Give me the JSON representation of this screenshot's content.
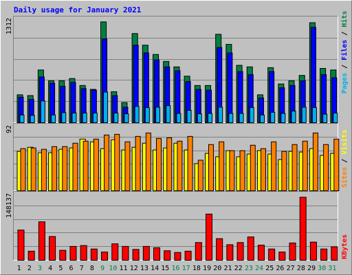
{
  "chart_data": {
    "type": "bar",
    "title": "Daily usage for January 2021",
    "categories": [
      "1",
      "2",
      "3",
      "4",
      "5",
      "6",
      "7",
      "8",
      "9",
      "10",
      "11",
      "12",
      "13",
      "14",
      "15",
      "16",
      "17",
      "18",
      "19",
      "20",
      "21",
      "22",
      "23",
      "24",
      "25",
      "26",
      "27",
      "28",
      "29",
      "30",
      "31"
    ],
    "weekend_days": [
      "3",
      "9",
      "10",
      "16",
      "17",
      "23",
      "24",
      "30",
      "31"
    ],
    "panels": [
      {
        "id": "requests",
        "ylim": [
          0,
          1312
        ],
        "max_label": "1312",
        "right_label": [
          "Pages",
          "Files",
          "Hits"
        ],
        "series": [
          {
            "name": "Hits",
            "color": "#008040",
            "values": [
              360,
              350,
              680,
              540,
              540,
              570,
              480,
              430,
              1300,
              400,
              260,
              1150,
              1000,
              880,
              790,
              720,
              600,
              480,
              480,
              1140,
              1010,
              740,
              720,
              360,
              710,
              500,
              540,
              610,
              1290,
              700,
              680
            ]
          },
          {
            "name": "Files",
            "color": "#0000ff",
            "values": [
              330,
              300,
              590,
              510,
              470,
              520,
              440,
              420,
              1080,
              350,
              200,
              1000,
              900,
              810,
              720,
              670,
              530,
              430,
              420,
              970,
              900,
              660,
              620,
              320,
              660,
              450,
              480,
              540,
              1230,
              620,
              580
            ]
          },
          {
            "name": "Pages",
            "color": "#00b0f0",
            "values": [
              100,
              95,
              280,
              100,
              130,
              125,
              125,
              125,
              395,
              125,
              115,
              210,
              195,
              200,
              220,
              120,
              160,
              115,
              120,
              200,
              120,
              120,
              195,
              100,
              135,
              120,
              150,
              200,
              195,
              110,
              125
            ]
          }
        ]
      },
      {
        "id": "visitors",
        "ylim": [
          0,
          92
        ],
        "max_label": "92",
        "right_label": [
          "Sites",
          "Visits"
        ],
        "series": [
          {
            "name": "Visits",
            "color": "#ffff00",
            "values": [
              58,
              64,
              56,
              56,
              61,
              63,
              76,
              72,
              62,
              75,
              60,
              64,
              70,
              60,
              63,
              70,
              60,
              40,
              55,
              50,
              59,
              50,
              54,
              59,
              54,
              46,
              58,
              57,
              62,
              52,
              55
            ]
          },
          {
            "name": "Sites",
            "color": "#ff8000",
            "values": [
              62,
              63,
              61,
              65,
              65,
              70,
              73,
              76,
              82,
              83,
              72,
              80,
              85,
              77,
              78,
              73,
              80,
              45,
              68,
              72,
              59,
              59,
              67,
              62,
              72,
              58,
              68,
              73,
              85,
              68,
              76
            ]
          }
        ]
      },
      {
        "id": "kbytes",
        "ylim": [
          0,
          148137
        ],
        "max_label": "148137",
        "right_label": [
          "KBytes"
        ],
        "series": [
          {
            "name": "KBytes",
            "color": "#ff0000",
            "values": [
              70000,
              21000,
              89000,
              55000,
              23000,
              32000,
              34000,
              26000,
              19000,
              38000,
              32000,
              25000,
              32000,
              29000,
              22000,
              18000,
              21000,
              41000,
              107000,
              50000,
              36000,
              41000,
              54000,
              35000,
              26000,
              19000,
              40000,
              146000,
              42000,
              26000,
              31000
            ]
          }
        ]
      }
    ],
    "colors": {
      "background": "#c0c0c0",
      "title": "#0000ff",
      "weekday_label": "#000000",
      "weekend_label": "#00804a",
      "label_pages": "#00b0f0",
      "label_files": "#0000ff",
      "label_hits": "#008040",
      "label_sites": "#ff8000",
      "label_visits": "#ffff00",
      "label_kbytes": "#ff0000",
      "separator": "#000000"
    }
  }
}
